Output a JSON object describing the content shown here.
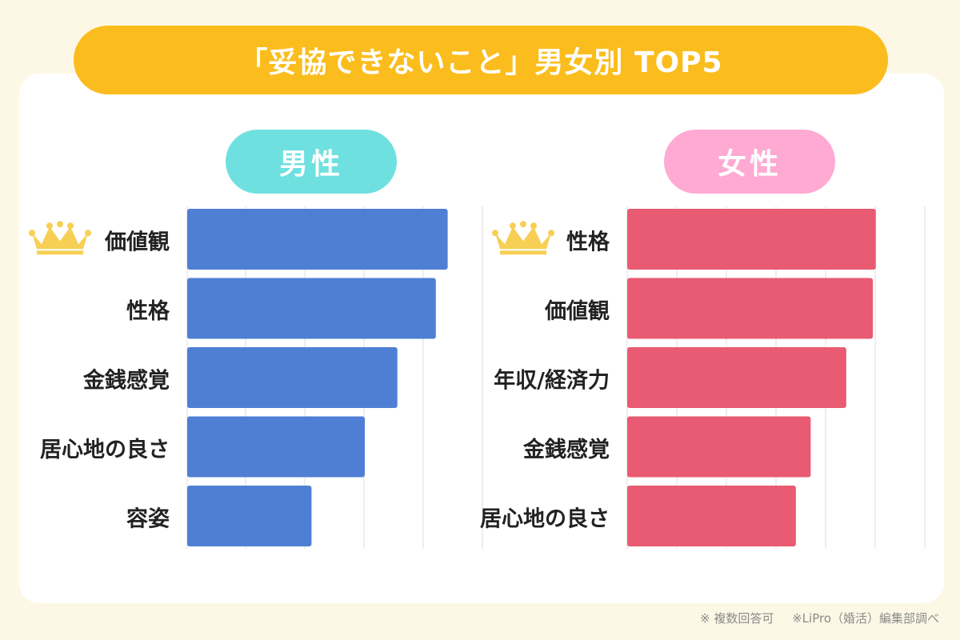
{
  "title": "「妥協できないこと」男女別 TOP5",
  "footnotes": [
    "※ 複数回答可",
    "※LiPro（婚活）編集部調べ"
  ],
  "colors": {
    "background": "#fdf8e6",
    "title_bar": "#fbbd1d",
    "male_tag": "#6fe0e0",
    "female_tag": "#ffaad2",
    "male_bar": "#4f7fd4",
    "female_bar": "#e85b72",
    "grid": "#dcdcdc",
    "crown": "#f7cf54"
  },
  "icons": {
    "rank1": "crown-icon"
  },
  "chart_data": [
    {
      "type": "bar",
      "orientation": "horizontal",
      "panel_label": "男性",
      "categories": [
        "価値観",
        "性格",
        "金銭感覚",
        "居心地の良さ",
        "容姿"
      ],
      "values": [
        44,
        42,
        35.5,
        30,
        21
      ],
      "xlim": [
        0,
        50
      ],
      "grid": true,
      "highlight_first": "crown"
    },
    {
      "type": "bar",
      "orientation": "horizontal",
      "panel_label": "女性",
      "categories": [
        "性格",
        "価値観",
        "年収/経済力",
        "金銭感覚",
        "居心地の良さ"
      ],
      "values": [
        42,
        41.5,
        37,
        31,
        28.5
      ],
      "xlim": [
        0,
        50
      ],
      "grid": true,
      "highlight_first": "crown"
    }
  ]
}
